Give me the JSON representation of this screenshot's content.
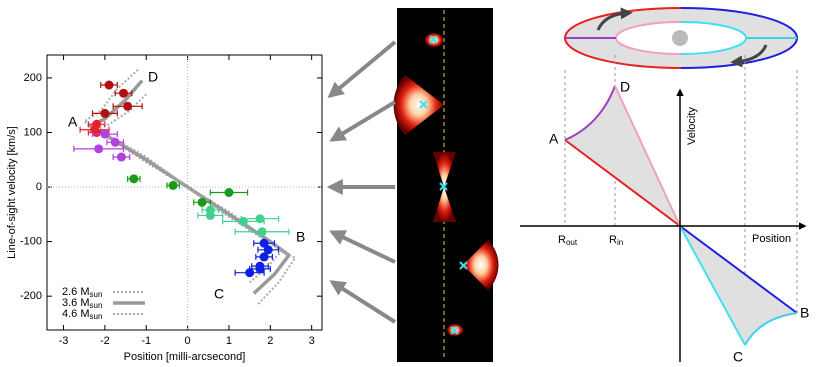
{
  "chart_data": {
    "type": "scatter",
    "x_label": "Position [milli-arcsecond]",
    "y_label": "Line-of-sight velocity [km/s]",
    "xlim": [
      -3.4,
      3.25
    ],
    "ylim": [
      -262,
      242
    ],
    "xticks": [
      -3,
      -2,
      -1,
      0,
      1,
      2,
      3
    ],
    "yticks": [
      -200,
      -100,
      0,
      100,
      200
    ],
    "zero_lines": true,
    "legend": "lower left",
    "series": [
      {
        "color": "#b01010",
        "x": [
          -1.9,
          -1.55,
          -1.45,
          -2.0
        ],
        "xerr": [
          0.2,
          0.2,
          0.35,
          0.3
        ],
        "values": [
          187,
          172,
          148,
          135
        ]
      },
      {
        "color": "#e8202a",
        "x": [
          -2.2,
          -2.25,
          -2.2
        ],
        "xerr": [
          0.2,
          0.35,
          0.2
        ],
        "values": [
          115,
          105,
          100
        ]
      },
      {
        "color": "#b040e0",
        "x": [
          -2.0,
          -1.75,
          -2.15,
          -1.6
        ],
        "xerr": [
          0.3,
          0.2,
          0.6,
          0.2
        ],
        "values": [
          97,
          82,
          70,
          55
        ]
      },
      {
        "color": "#1a9a1a",
        "x": [
          -1.3,
          -0.35,
          1.0,
          0.35
        ],
        "xerr": [
          0.15,
          0.15,
          0.45,
          0.2
        ],
        "values": [
          15,
          3,
          -10,
          -28
        ]
      },
      {
        "color": "#40d090",
        "x": [
          0.55,
          0.55,
          1.35,
          1.75,
          1.8
        ],
        "xerr": [
          0.2,
          0.3,
          0.5,
          0.45,
          0.65
        ],
        "values": [
          -42,
          -52,
          -63,
          -58,
          -82
        ]
      },
      {
        "color": "#1020e0",
        "x": [
          1.85,
          1.95,
          1.85,
          1.75,
          1.75,
          1.5
        ],
        "xerr": [
          0.25,
          0.25,
          0.2,
          0.2,
          0.25,
          0.35
        ],
        "values": [
          -103,
          -115,
          -128,
          -145,
          -150,
          -157
        ]
      }
    ],
    "model_curves": [
      {
        "name": "2.6 M",
        "name_sub": "sun",
        "color": "#aaaaaa",
        "style": "dotted",
        "x": [
          -1.0,
          -1.4,
          -1.9,
          -2.2,
          -1.0,
          0,
          1,
          1.9,
          2.3,
          1.95,
          1.5
        ],
        "values": [
          170,
          140,
          115,
          105,
          45,
          0,
          -45,
          -95,
          -115,
          -145,
          -175
        ]
      },
      {
        "name": "3.6 M",
        "name_sub": "sun",
        "color": "#999999",
        "style": "solid",
        "x": [
          -1.1,
          -1.5,
          -2.0,
          -2.35,
          -1.0,
          0,
          1.0,
          2.0,
          2.45,
          2.1,
          1.6
        ],
        "values": [
          195,
          160,
          125,
          112,
          50,
          0,
          -50,
          -100,
          -125,
          -160,
          -195
        ]
      },
      {
        "name": "4.6 M",
        "name_sub": "sun",
        "color": "#aaaaaa",
        "style": "dotted",
        "x": [
          -1.2,
          -1.7,
          -2.1,
          -2.5,
          -1,
          0,
          1,
          2.1,
          2.6,
          2.2,
          1.7
        ],
        "values": [
          215,
          180,
          140,
          120,
          55,
          0,
          -55,
          -108,
          -130,
          -175,
          -215
        ]
      }
    ],
    "annotations": [
      "A",
      "B",
      "C",
      "D"
    ]
  },
  "diagram": {
    "labels": [
      "A",
      "B",
      "C",
      "D"
    ],
    "r_out": {
      "text": "R",
      "sub": "out"
    },
    "r_in": {
      "text": "R",
      "sub": "in"
    },
    "y_axis": "Velocity",
    "x_axis": "Position"
  }
}
